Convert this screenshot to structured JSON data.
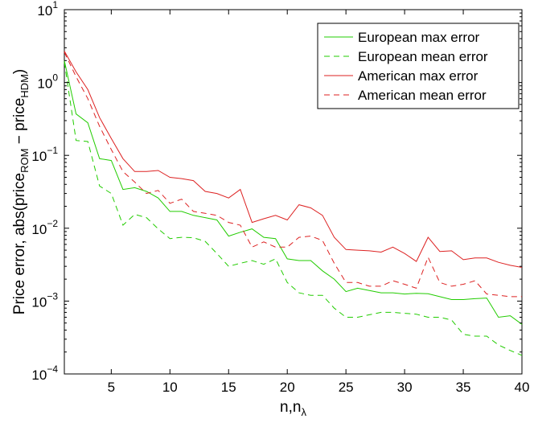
{
  "chart_data": {
    "type": "line",
    "xlabel": {
      "base": "n,n",
      "sub": "λ"
    },
    "ylabel": {
      "pre": "Price error, abs(price",
      "sub1": "ROM",
      "mid": " − price",
      "sub2": "HDM",
      "post": ")"
    },
    "xlim": [
      1,
      40
    ],
    "ylim": [
      0.0001,
      10
    ],
    "yscale": "log",
    "grid": false,
    "legend_position": "top-right",
    "x_ticks": [
      5,
      10,
      15,
      20,
      25,
      30,
      35,
      40
    ],
    "y_ticks": [
      {
        "value": 0.0001,
        "base": "10",
        "exp": "−4"
      },
      {
        "value": 0.001,
        "base": "10",
        "exp": "−3"
      },
      {
        "value": 0.01,
        "base": "10",
        "exp": "−2"
      },
      {
        "value": 0.1,
        "base": "10",
        "exp": "−1"
      },
      {
        "value": 1,
        "base": "10",
        "exp": "0"
      },
      {
        "value": 10,
        "base": "10",
        "exp": "1"
      }
    ],
    "x": [
      1,
      2,
      3,
      4,
      5,
      6,
      7,
      8,
      9,
      10,
      11,
      12,
      13,
      14,
      15,
      16,
      17,
      18,
      19,
      20,
      21,
      22,
      23,
      24,
      25,
      26,
      27,
      28,
      29,
      30,
      31,
      32,
      33,
      34,
      35,
      36,
      37,
      38,
      39,
      40
    ],
    "series": [
      {
        "name": "European max error",
        "color": "#22cc00",
        "dash": "solid",
        "values": [
          2.0,
          0.37,
          0.28,
          0.09,
          0.085,
          0.034,
          0.036,
          0.032,
          0.026,
          0.017,
          0.017,
          0.015,
          0.014,
          0.013,
          0.0078,
          0.0088,
          0.0098,
          0.0075,
          0.0072,
          0.0038,
          0.0036,
          0.0036,
          0.0026,
          0.002,
          0.00135,
          0.0015,
          0.0014,
          0.0013,
          0.0013,
          0.00125,
          0.00128,
          0.00126,
          0.00115,
          0.00105,
          0.00105,
          0.00108,
          0.0011,
          0.0006,
          0.00063,
          0.00048
        ]
      },
      {
        "name": "European mean error",
        "color": "#22cc00",
        "dash": "dashed",
        "values": [
          1.9,
          0.16,
          0.155,
          0.038,
          0.03,
          0.011,
          0.0155,
          0.014,
          0.0098,
          0.0072,
          0.0075,
          0.0074,
          0.0066,
          0.0045,
          0.003,
          0.0033,
          0.0036,
          0.0032,
          0.0038,
          0.0018,
          0.0013,
          0.0012,
          0.0012,
          0.0008,
          0.0006,
          0.0006,
          0.00065,
          0.0007,
          0.0007,
          0.00068,
          0.00066,
          0.0006,
          0.0006,
          0.00055,
          0.00035,
          0.00033,
          0.00033,
          0.00025,
          0.00021,
          0.00018
        ]
      },
      {
        "name": "American max error",
        "color": "#dd2222",
        "dash": "solid",
        "values": [
          2.7,
          1.4,
          0.8,
          0.33,
          0.17,
          0.09,
          0.06,
          0.06,
          0.062,
          0.05,
          0.048,
          0.045,
          0.032,
          0.03,
          0.026,
          0.034,
          0.012,
          0.0135,
          0.015,
          0.013,
          0.021,
          0.019,
          0.015,
          0.0075,
          0.0051,
          0.005,
          0.0049,
          0.0047,
          0.0055,
          0.0045,
          0.0035,
          0.0075,
          0.0048,
          0.0049,
          0.0037,
          0.0039,
          0.0039,
          0.0034,
          0.0031,
          0.0029
        ]
      },
      {
        "name": "American mean error",
        "color": "#dd2222",
        "dash": "dashed",
        "values": [
          2.6,
          1.2,
          0.6,
          0.25,
          0.12,
          0.06,
          0.043,
          0.03,
          0.033,
          0.022,
          0.025,
          0.017,
          0.016,
          0.015,
          0.012,
          0.011,
          0.0055,
          0.0065,
          0.0055,
          0.0055,
          0.0075,
          0.0078,
          0.0068,
          0.0033,
          0.0018,
          0.0018,
          0.0016,
          0.0016,
          0.0019,
          0.0017,
          0.0015,
          0.004,
          0.0018,
          0.0016,
          0.0017,
          0.0019,
          0.00125,
          0.0012,
          0.00115,
          0.00115
        ]
      }
    ]
  }
}
